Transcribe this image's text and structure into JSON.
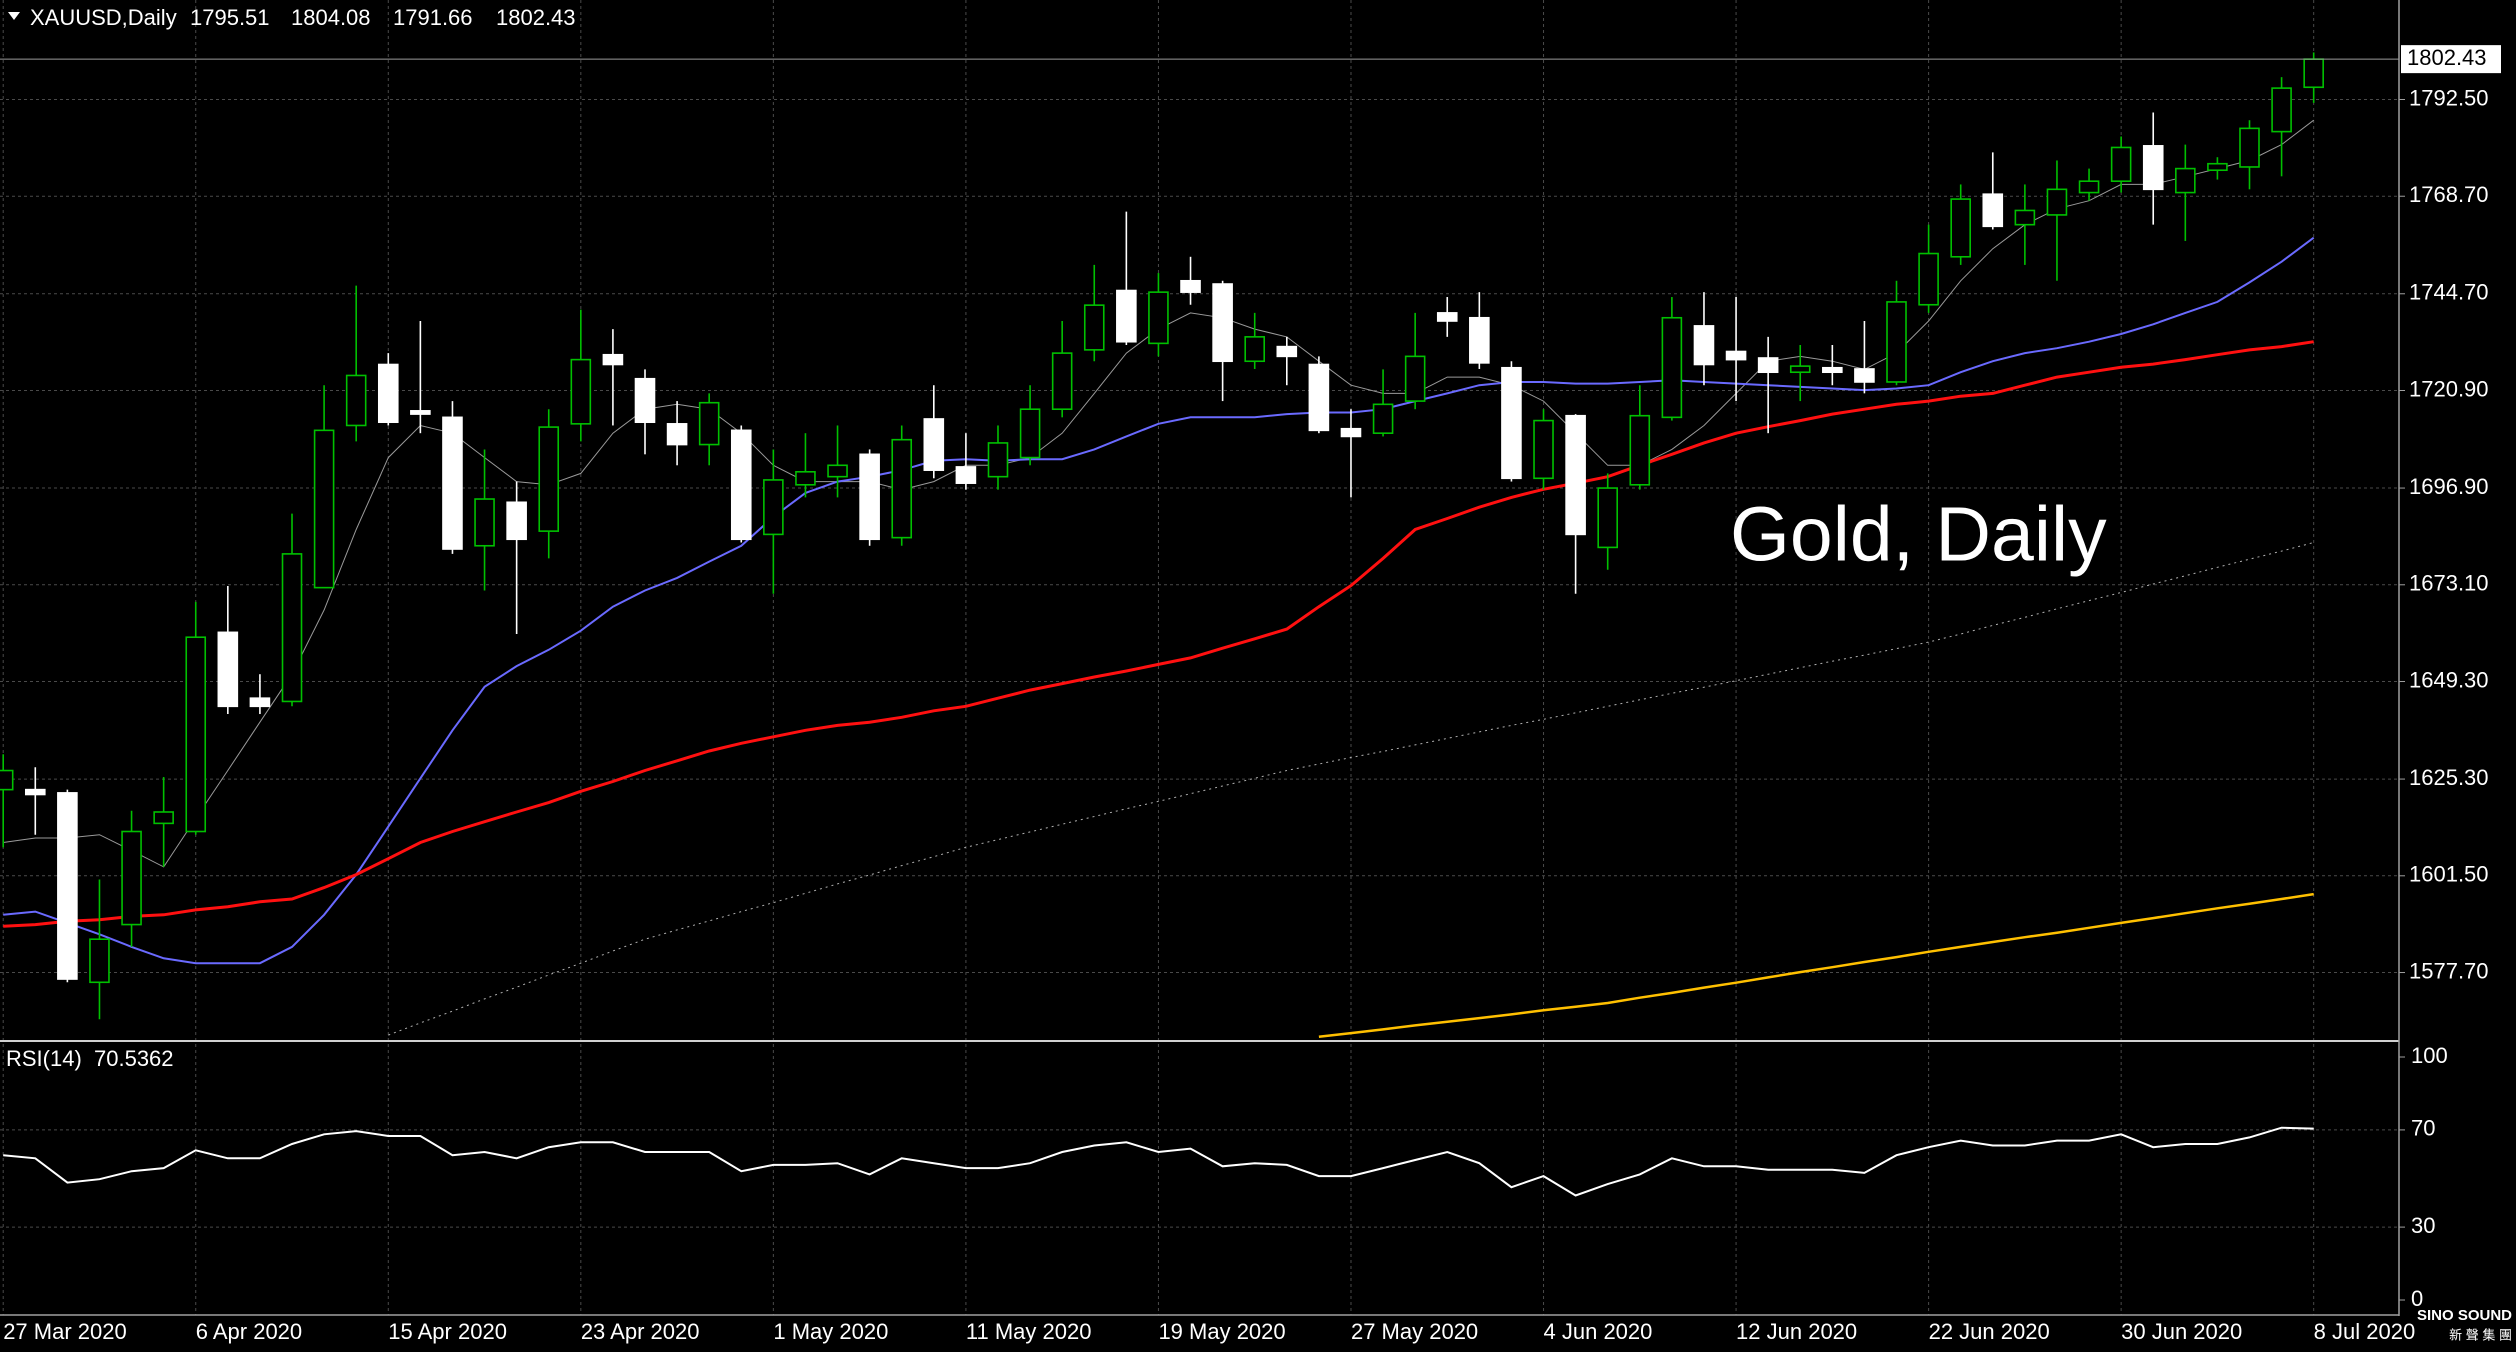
{
  "chart_data": [
    {
      "type": "candlestick",
      "title": "XAUUSD,Daily",
      "annotation": "Gold, Daily",
      "categories": [
        "27 Mar 2020",
        null,
        null,
        null,
        null,
        null,
        "6 Apr 2020",
        null,
        null,
        null,
        null,
        null,
        "15 Apr 2020",
        null,
        null,
        null,
        null,
        null,
        "23 Apr 2020",
        null,
        null,
        null,
        null,
        null,
        "1 May 2020",
        null,
        null,
        null,
        null,
        null,
        "11 May 2020",
        null,
        null,
        null,
        null,
        null,
        "19 May 2020",
        null,
        null,
        null,
        null,
        null,
        "27 May 2020",
        null,
        null,
        null,
        null,
        null,
        "4 Jun 2020",
        null,
        null,
        null,
        null,
        null,
        "12 Jun 2020",
        null,
        null,
        null,
        null,
        null,
        "22 Jun 2020",
        null,
        null,
        null,
        null,
        null,
        "30 Jun 2020",
        null,
        null,
        null,
        null,
        null,
        "8 Jul 2020"
      ],
      "open": [
        1622.7,
        1622.7,
        1621.9,
        1575.3,
        1589.5,
        1614.4,
        1612.4,
        1661.4,
        1645.2,
        1644.4,
        1672.4,
        1712.3,
        1727.3,
        1715.9,
        1714.3,
        1682.7,
        1693.4,
        1686.3,
        1712.7,
        1729.7,
        1723.8,
        1712.7,
        1707.6,
        1711.1,
        1685.5,
        1697.7,
        1699.7,
        1705.2,
        1684.7,
        1713.9,
        1702.1,
        1699.7,
        1704.4,
        1716.3,
        1730.9,
        1745.5,
        1732.5,
        1747.9,
        1747.1,
        1728.1,
        1731.7,
        1727.3,
        1711.5,
        1710.4,
        1718.3,
        1740.0,
        1738.8,
        1726.5,
        1699.3,
        1714.7,
        1682.3,
        1697.7,
        1714.3,
        1736.8,
        1730.5,
        1728.9,
        1725.4,
        1726.5,
        1726.2,
        1723.0,
        1742.0,
        1753.8,
        1769.2,
        1761.7,
        1764.1,
        1769.6,
        1772.4,
        1781.1,
        1769.6,
        1775.1,
        1775.9,
        1784.6,
        1795.51
      ],
      "high": [
        1631.4,
        1628.2,
        1622.7,
        1600.6,
        1617.5,
        1625.8,
        1668.9,
        1672.8,
        1651.1,
        1690.6,
        1722.2,
        1746.7,
        1730.1,
        1738.0,
        1718.3,
        1706.4,
        1698.5,
        1716.3,
        1740.8,
        1736.0,
        1726.1,
        1718.3,
        1720.2,
        1712.3,
        1706.4,
        1710.4,
        1712.3,
        1706.4,
        1712.3,
        1722.2,
        1710.4,
        1712.3,
        1722.2,
        1738.0,
        1751.8,
        1764.9,
        1749.8,
        1753.8,
        1747.9,
        1740.0,
        1734.1,
        1729.3,
        1716.3,
        1726.1,
        1740.0,
        1743.9,
        1745.1,
        1728.1,
        1716.3,
        1715.1,
        1700.5,
        1722.2,
        1743.9,
        1745.1,
        1743.9,
        1734.1,
        1732.1,
        1732.1,
        1738.0,
        1747.9,
        1761.7,
        1771.6,
        1779.5,
        1771.6,
        1777.5,
        1775.5,
        1783.4,
        1789.3,
        1781.4,
        1778.3,
        1787.4,
        1798.0,
        1804.08
      ],
      "low": [
        1608.5,
        1611.6,
        1575.3,
        1566.2,
        1584.0,
        1603.7,
        1611.6,
        1641.3,
        1641.3,
        1643.2,
        1672.4,
        1708.4,
        1712.3,
        1710.4,
        1680.7,
        1671.7,
        1661.0,
        1679.6,
        1708.4,
        1712.3,
        1705.2,
        1702.5,
        1702.5,
        1683.5,
        1670.9,
        1694.6,
        1694.6,
        1682.7,
        1682.7,
        1699.3,
        1696.5,
        1696.5,
        1702.5,
        1714.3,
        1728.1,
        1732.1,
        1729.3,
        1742.0,
        1718.3,
        1726.2,
        1722.2,
        1710.4,
        1694.6,
        1709.6,
        1716.3,
        1734.1,
        1726.2,
        1698.5,
        1696.5,
        1670.9,
        1676.8,
        1696.5,
        1713.5,
        1722.2,
        1718.3,
        1710.4,
        1718.3,
        1722.2,
        1720.2,
        1722.2,
        1740.0,
        1751.8,
        1760.5,
        1751.8,
        1747.9,
        1767.6,
        1769.6,
        1761.7,
        1757.7,
        1772.8,
        1770.4,
        1773.6,
        1791.66
      ],
      "close": [
        1627.4,
        1621.5,
        1576.1,
        1585.9,
        1612.4,
        1617.2,
        1660.2,
        1643.2,
        1643.2,
        1680.7,
        1711.1,
        1724.6,
        1713.1,
        1715.1,
        1681.9,
        1694.2,
        1684.3,
        1711.9,
        1728.5,
        1727.3,
        1713.1,
        1707.6,
        1717.9,
        1684.3,
        1698.9,
        1700.9,
        1702.5,
        1684.3,
        1708.8,
        1701.3,
        1698.1,
        1708.0,
        1716.3,
        1730.1,
        1741.9,
        1732.9,
        1745.1,
        1745.1,
        1728.1,
        1734.1,
        1729.3,
        1711.1,
        1709.6,
        1717.5,
        1729.3,
        1738.0,
        1727.7,
        1699.3,
        1713.5,
        1685.5,
        1696.9,
        1714.7,
        1738.8,
        1727.3,
        1728.5,
        1725.4,
        1726.9,
        1725.4,
        1723.0,
        1742.7,
        1754.6,
        1768.0,
        1761.3,
        1765.2,
        1770.4,
        1772.4,
        1780.7,
        1770.4,
        1775.5,
        1776.7,
        1785.4,
        1795.3,
        1802.43
      ],
      "up_color": "#00c000",
      "down_color": "#ffffff",
      "lines": [
        {
          "color": "#9a9a9a",
          "width": 1,
          "values": [
            1609.7,
            1610.8,
            1610.8,
            1611.6,
            1607.7,
            1603.7,
            1615.6,
            1627.4,
            1639.3,
            1651.1,
            1666.9,
            1686.7,
            1704.4,
            1712.3,
            1710.4,
            1704.4,
            1698.5,
            1697.7,
            1700.5,
            1710.4,
            1716.3,
            1717.5,
            1716.3,
            1710.4,
            1702.5,
            1698.5,
            1698.5,
            1698.5,
            1696.5,
            1698.5,
            1702.5,
            1702.5,
            1704.4,
            1710.4,
            1720.2,
            1730.1,
            1736.0,
            1740.0,
            1738.8,
            1736.0,
            1734.1,
            1728.1,
            1722.2,
            1720.2,
            1720.2,
            1724.2,
            1724.2,
            1722.2,
            1718.3,
            1710.4,
            1702.5,
            1702.5,
            1706.4,
            1712.3,
            1720.2,
            1728.1,
            1729.3,
            1728.1,
            1726.1,
            1730.1,
            1738.0,
            1747.9,
            1755.8,
            1761.7,
            1765.6,
            1767.6,
            1771.6,
            1771.6,
            1773.5,
            1775.5,
            1777.5,
            1781.4,
            1787.4
          ]
        },
        {
          "color": "#6a6aff",
          "width": 2,
          "values": [
            1591.9,
            1592.7,
            1589.9,
            1587.1,
            1584.0,
            1581.2,
            1580.0,
            1580.0,
            1580.0,
            1584.0,
            1591.9,
            1601.8,
            1613.6,
            1625.5,
            1637.3,
            1648.0,
            1653.1,
            1657.1,
            1661.8,
            1667.7,
            1671.7,
            1674.8,
            1678.8,
            1682.7,
            1689.8,
            1695.7,
            1698.5,
            1699.7,
            1701.3,
            1703.6,
            1704.0,
            1703.6,
            1704.0,
            1704.0,
            1706.4,
            1709.6,
            1712.7,
            1714.3,
            1714.3,
            1714.3,
            1715.1,
            1715.5,
            1715.5,
            1716.3,
            1718.3,
            1720.2,
            1722.2,
            1723.0,
            1723.0,
            1722.6,
            1722.6,
            1723.0,
            1723.4,
            1723.0,
            1722.6,
            1722.2,
            1721.8,
            1721.4,
            1721.0,
            1721.4,
            1722.2,
            1725.4,
            1728.1,
            1730.1,
            1731.3,
            1732.9,
            1734.8,
            1737.2,
            1740.0,
            1742.7,
            1747.5,
            1752.6,
            1758.5
          ]
        },
        {
          "color": "#ff1010",
          "width": 3,
          "values": [
            1589.1,
            1589.5,
            1590.3,
            1590.7,
            1591.5,
            1591.9,
            1593.1,
            1593.9,
            1595.1,
            1595.8,
            1598.6,
            1601.8,
            1605.7,
            1609.7,
            1612.4,
            1614.8,
            1617.2,
            1619.5,
            1622.3,
            1624.7,
            1627.4,
            1629.8,
            1632.2,
            1634.1,
            1635.7,
            1637.3,
            1638.5,
            1639.3,
            1640.5,
            1642.1,
            1643.2,
            1645.2,
            1647.2,
            1648.8,
            1650.4,
            1651.9,
            1653.5,
            1655.1,
            1657.5,
            1659.8,
            1662.2,
            1667.7,
            1672.9,
            1679.6,
            1686.7,
            1689.4,
            1692.2,
            1694.6,
            1696.6,
            1698.1,
            1699.7,
            1702.5,
            1705.2,
            1708.0,
            1710.4,
            1712.0,
            1713.5,
            1715.1,
            1716.3,
            1717.5,
            1718.3,
            1719.5,
            1720.2,
            1722.2,
            1724.2,
            1725.4,
            1726.6,
            1727.4,
            1728.5,
            1729.7,
            1730.9,
            1731.7,
            1732.9
          ]
        },
        {
          "color": "#b0b0b0",
          "width": 1,
          "dashed": true,
          "values": [
            null,
            null,
            null,
            null,
            null,
            null,
            null,
            null,
            null,
            null,
            null,
            null,
            1562.3,
            1565.3,
            1568.2,
            1571.2,
            1574.1,
            1577.1,
            1580.0,
            1583.0,
            1585.9,
            1588.2,
            1590.4,
            1592.7,
            1594.9,
            1597.2,
            1599.5,
            1601.7,
            1604.0,
            1606.2,
            1608.5,
            1610.4,
            1612.3,
            1614.2,
            1616.1,
            1618.0,
            1619.8,
            1621.7,
            1623.6,
            1625.5,
            1627.4,
            1629.0,
            1630.6,
            1632.1,
            1633.7,
            1635.3,
            1636.9,
            1638.5,
            1640.0,
            1641.6,
            1643.2,
            1644.8,
            1646.4,
            1647.9,
            1649.5,
            1651.1,
            1652.7,
            1654.3,
            1655.8,
            1657.4,
            1659.0,
            1661.0,
            1663.1,
            1665.1,
            1667.2,
            1669.2,
            1671.2,
            1673.3,
            1675.3,
            1677.4,
            1679.4,
            1681.4,
            1683.5
          ]
        },
        {
          "color": "#ffc000",
          "width": 2.5,
          "values": [
            null,
            null,
            null,
            null,
            null,
            null,
            null,
            null,
            null,
            null,
            null,
            null,
            null,
            null,
            null,
            null,
            null,
            null,
            null,
            null,
            null,
            null,
            null,
            null,
            null,
            null,
            null,
            null,
            null,
            null,
            null,
            null,
            null,
            null,
            null,
            null,
            null,
            null,
            null,
            null,
            null,
            1561.9,
            1562.8,
            1563.7,
            1564.7,
            1565.6,
            1566.5,
            1567.4,
            1568.4,
            1569.3,
            1570.2,
            1571.5,
            1572.7,
            1574.0,
            1575.2,
            1576.5,
            1577.8,
            1579.0,
            1580.3,
            1581.5,
            1582.8,
            1584.0,
            1585.2,
            1586.4,
            1587.5,
            1588.7,
            1589.9,
            1591.1,
            1592.3,
            1593.5,
            1594.6,
            1595.8,
            1597.0
          ]
        }
      ],
      "ylim": [
        1561.1,
        1816.98
      ],
      "yticks": [
        {
          "value": 1577.7,
          "label": "1577.70"
        },
        {
          "value": 1601.5,
          "label": "1601.50"
        },
        {
          "value": 1625.3,
          "label": "1625.30"
        },
        {
          "value": 1649.3,
          "label": "1649.30"
        },
        {
          "value": 1673.1,
          "label": "1673.10"
        },
        {
          "value": 1696.9,
          "label": "1696.90"
        },
        {
          "value": 1720.9,
          "label": "1720.90"
        },
        {
          "value": 1744.7,
          "label": "1744.70"
        },
        {
          "value": 1768.7,
          "label": "1768.70"
        },
        {
          "value": 1792.5,
          "label": "1792.50"
        }
      ],
      "grid": true,
      "current_price_line": true
    },
    {
      "type": "line",
      "title": "RSI(14)",
      "color": "#ffffff",
      "values": [
        59.6,
        58.3,
        48.3,
        49.7,
        53.0,
        54.3,
        61.6,
        58.3,
        58.3,
        64.2,
        68.2,
        69.5,
        67.5,
        67.5,
        59.6,
        60.9,
        58.3,
        62.9,
        64.9,
        64.9,
        60.9,
        60.9,
        60.9,
        53.0,
        55.6,
        55.6,
        56.3,
        51.7,
        58.3,
        56.3,
        54.3,
        54.3,
        56.3,
        60.9,
        63.6,
        64.9,
        60.9,
        62.3,
        55.0,
        56.3,
        55.6,
        51.0,
        51.0,
        54.3,
        57.6,
        60.9,
        56.3,
        46.4,
        51.0,
        43.0,
        47.7,
        51.7,
        58.3,
        55.0,
        55.0,
        53.6,
        53.6,
        53.6,
        52.3,
        59.6,
        62.9,
        65.6,
        63.6,
        63.6,
        65.6,
        65.6,
        68.2,
        62.9,
        64.2,
        64.2,
        66.9,
        70.9,
        70.5362
      ],
      "ylim": [
        0,
        100
      ],
      "yticks": [
        0,
        30,
        70,
        100
      ],
      "grid": true
    }
  ],
  "logo": {
    "text": "SINO SOUND",
    "subtext": "新 聲 集 團"
  }
}
